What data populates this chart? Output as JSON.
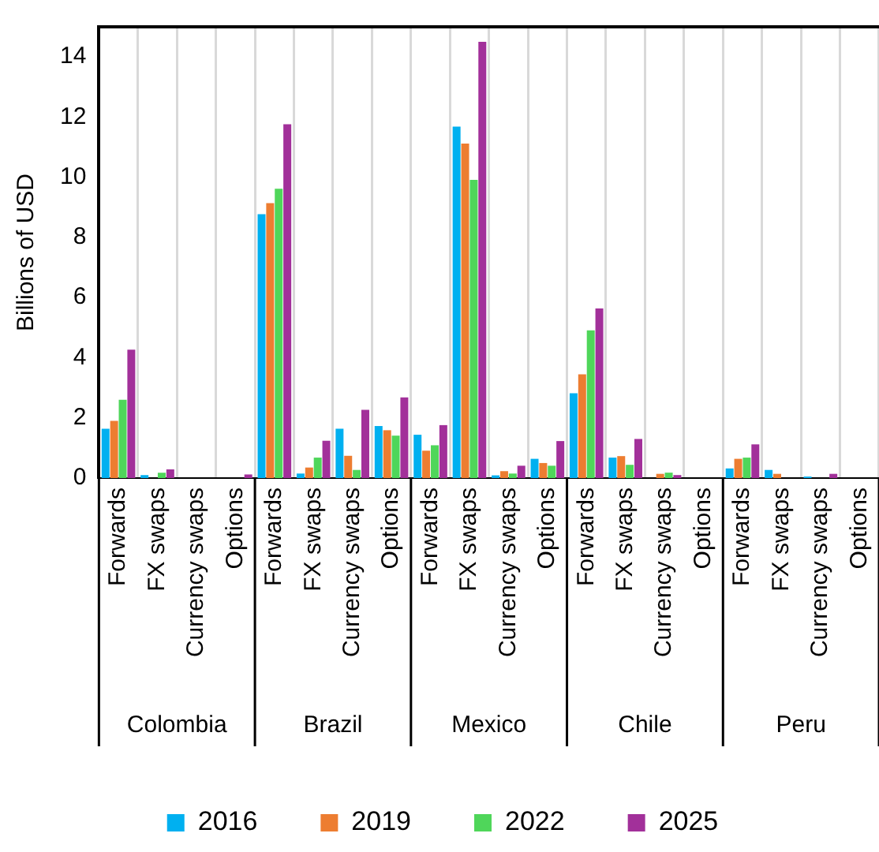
{
  "chart_data": {
    "type": "bar",
    "ylabel": "Billions of USD",
    "categories": [
      "Forwards",
      "FX swaps",
      "Currency swaps",
      "Options",
      "Forwards",
      "FX swaps",
      "Currency swaps",
      "Options",
      "Forwards",
      "FX swaps",
      "Currency swaps",
      "Options",
      "Forwards",
      "FX swaps",
      "Currency swaps",
      "Options",
      "Forwards",
      "FX swaps",
      "Currency swaps",
      "Options"
    ],
    "series": [
      {
        "name": "2016",
        "color": "#00b0f0",
        "values": [
          1.64,
          0.1,
          0,
          0,
          8.77,
          0.15,
          1.64,
          1.73,
          1.44,
          11.68,
          0.09,
          0.64,
          2.82,
          0.68,
          0,
          0,
          0.32,
          0.27,
          0.05,
          0
        ]
      },
      {
        "name": "2019",
        "color": "#ed7d31",
        "values": [
          1.9,
          0,
          0,
          0,
          9.14,
          0.35,
          0.74,
          1.59,
          0.91,
          11.12,
          0.23,
          0.5,
          3.45,
          0.73,
          0.14,
          0,
          0.64,
          0.14,
          0,
          0
        ]
      },
      {
        "name": "2022",
        "color": "#4fd65a",
        "values": [
          2.6,
          0.18,
          0,
          0,
          9.62,
          0.68,
          0.27,
          1.41,
          1.09,
          9.91,
          0.15,
          0.41,
          4.91,
          0.44,
          0.18,
          0,
          0.68,
          0,
          0,
          0
        ]
      },
      {
        "name": "2025",
        "color": "#a2309a",
        "values": [
          4.27,
          0.29,
          0,
          0.12,
          11.76,
          1.24,
          2.27,
          2.68,
          1.76,
          14.5,
          0.41,
          1.23,
          5.64,
          1.3,
          0.1,
          0,
          1.12,
          0,
          0.14,
          0
        ]
      }
    ],
    "ylim": [
      0,
      15
    ],
    "yticks": [
      0,
      2,
      4,
      6,
      8,
      10,
      12,
      14
    ],
    "grid": "x",
    "legend": "bottom",
    "annotations": [
      "Colombia",
      "Brazil",
      "Mexico",
      "Chile",
      "Peru"
    ]
  }
}
